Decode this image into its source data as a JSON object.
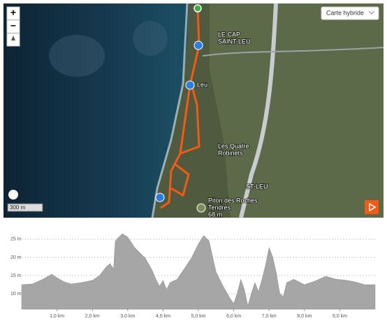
{
  "map": {
    "zoom_in": "+",
    "zoom_out": "−",
    "layer_select": "Carte hybride",
    "scale": "300 m",
    "places": [
      {
        "lines": [
          "LE CAP",
          "SAINT-LEU"
        ]
      },
      {
        "lines": [
          "Leu"
        ]
      },
      {
        "lines": [
          "Les Quatre",
          "Robinets"
        ]
      },
      {
        "lines": [
          "ST-LEU"
        ]
      },
      {
        "lines": [
          "Piton des Roches",
          "Tendres",
          "68 m"
        ]
      }
    ]
  },
  "chart_data": {
    "type": "area",
    "color": "#a6a6a6",
    "x": [
      0,
      0.3,
      0.6,
      0.85,
      1.0,
      1.2,
      1.4,
      1.7,
      2.0,
      2.2,
      2.4,
      2.5,
      2.6,
      2.65,
      2.75,
      2.85,
      3.0,
      3.2,
      3.5,
      3.7,
      3.8,
      3.9,
      4.0,
      4.1,
      4.2,
      4.4,
      4.6,
      4.8,
      5.0,
      5.15,
      5.3,
      5.5,
      5.7,
      5.9,
      6.0,
      6.1,
      6.2,
      6.3,
      6.4,
      6.5,
      6.6,
      6.7,
      6.8,
      6.9,
      7.0,
      7.1,
      7.2,
      7.3,
      7.4,
      7.5,
      7.7,
      8.0,
      8.3,
      8.6,
      8.9,
      9.2,
      9.5,
      9.7,
      10.0
    ],
    "values": [
      12.5,
      12.7,
      14,
      15.4,
      14.4,
      13.3,
      12.7,
      13.1,
      13.7,
      15,
      17.5,
      18.3,
      16.9,
      24.6,
      25.6,
      26.5,
      25.6,
      22.7,
      19.8,
      16.3,
      14,
      12.1,
      13.7,
      11.2,
      13.1,
      14,
      16.9,
      19.8,
      23.7,
      26,
      24.6,
      16,
      12.1,
      8.7,
      7.3,
      10.2,
      14,
      11.2,
      6.7,
      10.2,
      13.1,
      10.6,
      14,
      17.9,
      22.7,
      20.2,
      16,
      10.2,
      9.2,
      13.1,
      14,
      12.5,
      13.5,
      14.8,
      14,
      13.7,
      13.1,
      12.5,
      12.5
    ],
    "xlim": [
      0,
      10
    ],
    "ylim": [
      5.8,
      26.5
    ],
    "xticks": [
      {
        "value": 1,
        "label": "1,0 km"
      },
      {
        "value": 2,
        "label": "2,0 km"
      },
      {
        "value": 3,
        "label": "3,0 km"
      },
      {
        "value": 4,
        "label": "4,0 km"
      },
      {
        "value": 5,
        "label": "5,0 km"
      },
      {
        "value": 6,
        "label": "6,0 km"
      },
      {
        "value": 7,
        "label": "7,0 km"
      },
      {
        "value": 8,
        "label": "8,0 km"
      },
      {
        "value": 9,
        "label": "9,0 km"
      }
    ],
    "yticks": [
      {
        "value": 10,
        "label": "10 m"
      },
      {
        "value": 15,
        "label": "15 m"
      },
      {
        "value": 20,
        "label": "20 m"
      },
      {
        "value": 25,
        "label": "25 m"
      }
    ],
    "grid": true
  }
}
